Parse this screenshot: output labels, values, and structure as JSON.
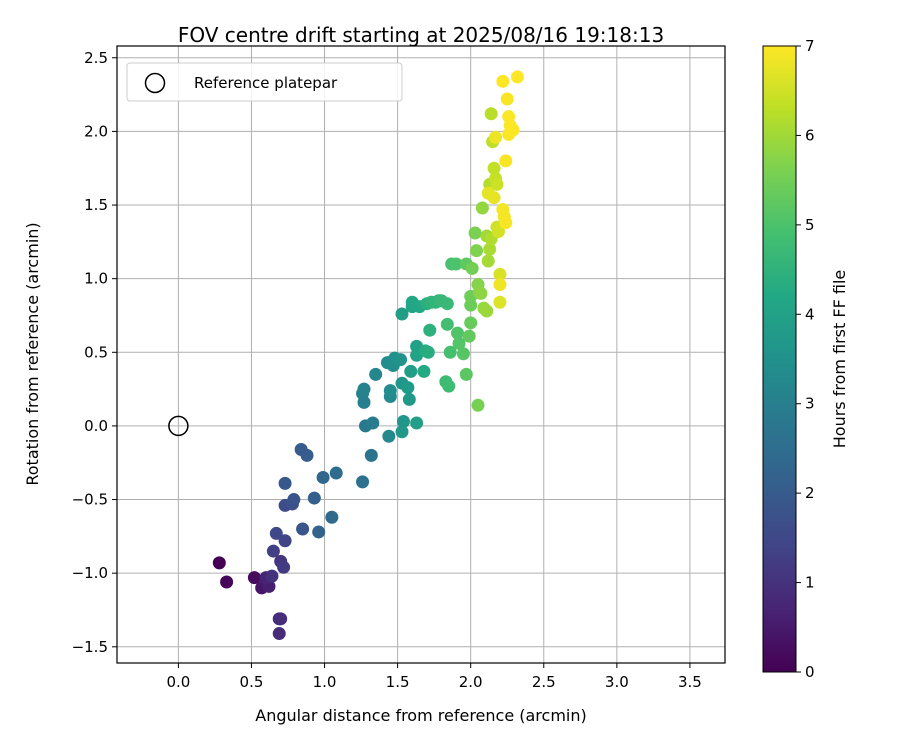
{
  "chart_data": {
    "type": "scatter",
    "title": "FOV centre drift starting at 2025/08/16 19:18:13",
    "xlabel": "Angular distance from reference (arcmin)",
    "ylabel": "Rotation from reference (arcmin)",
    "xlim": [
      -0.42,
      3.74
    ],
    "ylim": [
      -1.61,
      2.58
    ],
    "xticks": [
      0.0,
      0.5,
      1.0,
      1.5,
      2.0,
      2.5,
      3.0,
      3.5
    ],
    "xtick_labels": [
      "0.0",
      "0.5",
      "1.0",
      "1.5",
      "2.0",
      "2.5",
      "3.0",
      "3.5"
    ],
    "yticks": [
      -1.5,
      -1.0,
      -0.5,
      0.0,
      0.5,
      1.0,
      1.5,
      2.0,
      2.5
    ],
    "ytick_labels": [
      "−1.5",
      "−1.0",
      "−0.5",
      "0.0",
      "0.5",
      "1.0",
      "1.5",
      "2.0",
      "2.5"
    ],
    "grid": true,
    "legend": {
      "placement": "top-left",
      "entries": [
        "Reference platepar"
      ]
    },
    "reference_point": {
      "x": 0.0,
      "y": 0.0
    },
    "colorbar": {
      "label": "Hours from first FF file",
      "range": [
        0,
        7
      ],
      "ticks": [
        0,
        1,
        2,
        3,
        4,
        5,
        6,
        7
      ],
      "tick_labels": [
        "0",
        "1",
        "2",
        "3",
        "4",
        "5",
        "6",
        "7"
      ],
      "colormap": "viridis"
    },
    "points": [
      {
        "x": 0.28,
        "y": -0.93,
        "h": 0.0
      },
      {
        "x": 0.33,
        "y": -1.06,
        "h": 0.1
      },
      {
        "x": 0.52,
        "y": -1.03,
        "h": 0.2
      },
      {
        "x": 0.57,
        "y": -1.1,
        "h": 0.4
      },
      {
        "x": 0.6,
        "y": -1.06,
        "h": 0.5
      },
      {
        "x": 0.62,
        "y": -1.09,
        "h": 0.6
      },
      {
        "x": 0.6,
        "y": -1.03,
        "h": 0.7
      },
      {
        "x": 0.69,
        "y": -1.31,
        "h": 0.8
      },
      {
        "x": 0.69,
        "y": -1.41,
        "h": 0.85
      },
      {
        "x": 0.7,
        "y": -1.31,
        "h": 0.9
      },
      {
        "x": 0.64,
        "y": -1.02,
        "h": 1.0
      },
      {
        "x": 0.7,
        "y": -0.92,
        "h": 1.1
      },
      {
        "x": 0.72,
        "y": -0.96,
        "h": 1.2
      },
      {
        "x": 0.65,
        "y": -0.85,
        "h": 1.3
      },
      {
        "x": 0.73,
        "y": -0.78,
        "h": 1.4
      },
      {
        "x": 0.67,
        "y": -0.73,
        "h": 1.5
      },
      {
        "x": 0.73,
        "y": -0.54,
        "h": 1.6
      },
      {
        "x": 0.78,
        "y": -0.53,
        "h": 1.7
      },
      {
        "x": 0.79,
        "y": -0.5,
        "h": 1.8
      },
      {
        "x": 0.85,
        "y": -0.7,
        "h": 1.85
      },
      {
        "x": 0.73,
        "y": -0.39,
        "h": 1.9
      },
      {
        "x": 0.84,
        "y": -0.16,
        "h": 2.0
      },
      {
        "x": 0.88,
        "y": -0.2,
        "h": 2.05
      },
      {
        "x": 0.93,
        "y": -0.49,
        "h": 2.1
      },
      {
        "x": 0.96,
        "y": -0.72,
        "h": 2.2
      },
      {
        "x": 0.99,
        "y": -0.35,
        "h": 2.3
      },
      {
        "x": 1.05,
        "y": -0.62,
        "h": 2.4
      },
      {
        "x": 1.08,
        "y": -0.32,
        "h": 2.5
      },
      {
        "x": 1.26,
        "y": -0.38,
        "h": 2.6
      },
      {
        "x": 1.32,
        "y": -0.2,
        "h": 2.7
      },
      {
        "x": 1.28,
        "y": 0.0,
        "h": 2.8
      },
      {
        "x": 1.33,
        "y": 0.02,
        "h": 2.9
      },
      {
        "x": 1.27,
        "y": 0.16,
        "h": 3.0
      },
      {
        "x": 1.26,
        "y": 0.22,
        "h": 3.05
      },
      {
        "x": 1.27,
        "y": 0.25,
        "h": 3.1
      },
      {
        "x": 1.35,
        "y": 0.35,
        "h": 3.2
      },
      {
        "x": 1.44,
        "y": -0.07,
        "h": 3.25
      },
      {
        "x": 1.45,
        "y": 0.2,
        "h": 3.3
      },
      {
        "x": 1.45,
        "y": 0.24,
        "h": 3.35
      },
      {
        "x": 1.43,
        "y": 0.43,
        "h": 3.4
      },
      {
        "x": 1.47,
        "y": 0.41,
        "h": 3.45
      },
      {
        "x": 1.48,
        "y": 0.46,
        "h": 3.5
      },
      {
        "x": 1.52,
        "y": 0.45,
        "h": 3.55
      },
      {
        "x": 1.53,
        "y": 0.29,
        "h": 3.6
      },
      {
        "x": 1.54,
        "y": 0.03,
        "h": 3.65
      },
      {
        "x": 1.53,
        "y": -0.04,
        "h": 3.7
      },
      {
        "x": 1.58,
        "y": 0.18,
        "h": 3.75
      },
      {
        "x": 1.57,
        "y": 0.26,
        "h": 3.8
      },
      {
        "x": 1.59,
        "y": 0.37,
        "h": 3.85
      },
      {
        "x": 1.53,
        "y": 0.76,
        "h": 3.9
      },
      {
        "x": 1.63,
        "y": 0.02,
        "h": 3.95
      },
      {
        "x": 1.63,
        "y": 0.54,
        "h": 4.0
      },
      {
        "x": 1.63,
        "y": 0.48,
        "h": 4.05
      },
      {
        "x": 1.6,
        "y": 0.81,
        "h": 4.1
      },
      {
        "x": 1.6,
        "y": 0.84,
        "h": 4.15
      },
      {
        "x": 1.65,
        "y": 0.81,
        "h": 4.2
      },
      {
        "x": 1.68,
        "y": 0.37,
        "h": 4.25
      },
      {
        "x": 1.69,
        "y": 0.51,
        "h": 4.3
      },
      {
        "x": 1.71,
        "y": 0.5,
        "h": 4.35
      },
      {
        "x": 1.7,
        "y": 0.83,
        "h": 4.4
      },
      {
        "x": 1.72,
        "y": 0.65,
        "h": 4.45
      },
      {
        "x": 1.73,
        "y": 0.84,
        "h": 4.5
      },
      {
        "x": 1.76,
        "y": 0.84,
        "h": 4.55
      },
      {
        "x": 1.78,
        "y": 0.85,
        "h": 4.6
      },
      {
        "x": 1.8,
        "y": 0.85,
        "h": 4.65
      },
      {
        "x": 1.84,
        "y": 0.83,
        "h": 4.7
      },
      {
        "x": 1.83,
        "y": 0.3,
        "h": 4.75
      },
      {
        "x": 1.85,
        "y": 0.27,
        "h": 4.8
      },
      {
        "x": 1.84,
        "y": 0.69,
        "h": 4.85
      },
      {
        "x": 1.86,
        "y": 0.5,
        "h": 4.9
      },
      {
        "x": 1.87,
        "y": 1.1,
        "h": 4.95
      },
      {
        "x": 1.9,
        "y": 1.1,
        "h": 5.0
      },
      {
        "x": 1.91,
        "y": 0.63,
        "h": 5.05
      },
      {
        "x": 1.92,
        "y": 0.56,
        "h": 5.1
      },
      {
        "x": 1.95,
        "y": 0.49,
        "h": 5.15
      },
      {
        "x": 1.97,
        "y": 0.35,
        "h": 5.2
      },
      {
        "x": 1.97,
        "y": 1.1,
        "h": 5.25
      },
      {
        "x": 1.99,
        "y": 0.61,
        "h": 5.3
      },
      {
        "x": 2.0,
        "y": 0.7,
        "h": 5.35
      },
      {
        "x": 2.0,
        "y": 0.82,
        "h": 5.4
      },
      {
        "x": 2.0,
        "y": 0.88,
        "h": 5.45
      },
      {
        "x": 2.01,
        "y": 1.07,
        "h": 5.5
      },
      {
        "x": 2.05,
        "y": 0.14,
        "h": 5.55
      },
      {
        "x": 2.03,
        "y": 1.31,
        "h": 5.6
      },
      {
        "x": 2.04,
        "y": 1.19,
        "h": 5.65
      },
      {
        "x": 2.05,
        "y": 0.96,
        "h": 5.7
      },
      {
        "x": 2.06,
        "y": 0.91,
        "h": 5.75
      },
      {
        "x": 2.07,
        "y": 0.9,
        "h": 5.8
      },
      {
        "x": 2.08,
        "y": 1.48,
        "h": 5.85
      },
      {
        "x": 2.09,
        "y": 0.8,
        "h": 5.9
      },
      {
        "x": 2.11,
        "y": 0.78,
        "h": 5.95
      },
      {
        "x": 2.11,
        "y": 1.29,
        "h": 6.0
      },
      {
        "x": 2.12,
        "y": 1.12,
        "h": 6.05
      },
      {
        "x": 2.13,
        "y": 1.2,
        "h": 6.1
      },
      {
        "x": 2.14,
        "y": 1.27,
        "h": 6.15
      },
      {
        "x": 2.13,
        "y": 1.64,
        "h": 6.2
      },
      {
        "x": 2.14,
        "y": 2.12,
        "h": 6.25
      },
      {
        "x": 2.15,
        "y": 1.93,
        "h": 6.3
      },
      {
        "x": 2.16,
        "y": 1.75,
        "h": 6.35
      },
      {
        "x": 2.17,
        "y": 1.68,
        "h": 6.4
      },
      {
        "x": 2.18,
        "y": 1.64,
        "h": 6.45
      },
      {
        "x": 2.18,
        "y": 1.35,
        "h": 6.5
      },
      {
        "x": 2.19,
        "y": 1.32,
        "h": 6.55
      },
      {
        "x": 2.2,
        "y": 1.03,
        "h": 6.6
      },
      {
        "x": 2.2,
        "y": 0.84,
        "h": 6.65
      },
      {
        "x": 2.12,
        "y": 1.58,
        "h": 6.7
      },
      {
        "x": 2.16,
        "y": 1.55,
        "h": 6.75
      },
      {
        "x": 2.17,
        "y": 1.96,
        "h": 6.8
      },
      {
        "x": 2.2,
        "y": 0.96,
        "h": 6.85
      },
      {
        "x": 2.22,
        "y": 1.47,
        "h": 6.88
      },
      {
        "x": 2.23,
        "y": 1.42,
        "h": 6.9
      },
      {
        "x": 2.24,
        "y": 1.38,
        "h": 6.92
      },
      {
        "x": 2.24,
        "y": 1.8,
        "h": 6.94
      },
      {
        "x": 2.25,
        "y": 2.22,
        "h": 6.95
      },
      {
        "x": 2.26,
        "y": 1.98,
        "h": 6.96
      },
      {
        "x": 2.26,
        "y": 2.1,
        "h": 6.97
      },
      {
        "x": 2.27,
        "y": 2.04,
        "h": 6.98
      },
      {
        "x": 2.29,
        "y": 2.01,
        "h": 6.99
      },
      {
        "x": 2.22,
        "y": 2.34,
        "h": 7.0
      },
      {
        "x": 2.32,
        "y": 2.37,
        "h": 7.0
      }
    ]
  }
}
